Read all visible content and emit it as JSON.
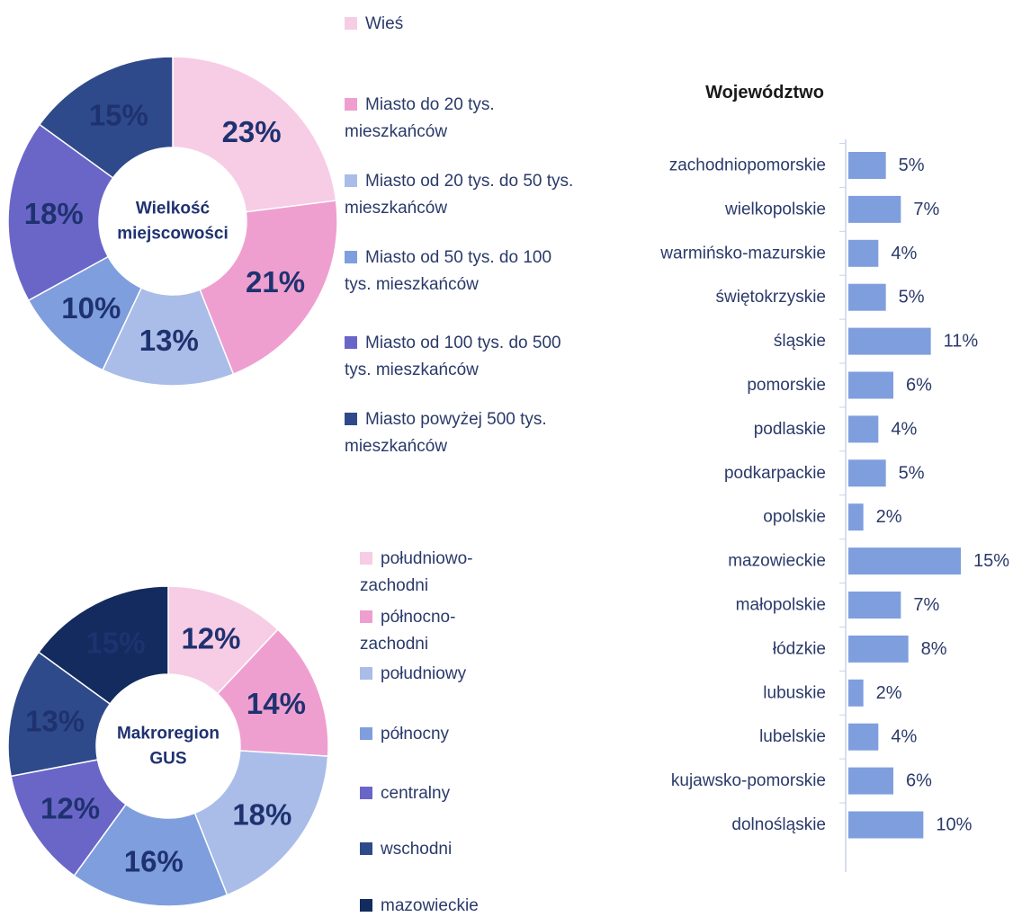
{
  "chart_data": [
    {
      "type": "donut",
      "center_label": [
        "Wielkość",
        "miejscowości"
      ],
      "categories": [
        "Wieś",
        "Miasto do 20 tys. mieszkańców",
        "Miasto od 20 tys. do 50 tys. mieszkańców",
        "Miasto od 50 tys. do 100 tys. mieszkańców",
        "Miasto od 100 tys. do 500 tys. mieszkańców",
        "Miasto powyżej 500 tys. mieszkańców"
      ],
      "values": [
        23,
        21,
        13,
        10,
        18,
        15
      ],
      "value_labels": [
        "23%",
        "21%",
        "13%",
        "10%",
        "18%",
        "15%"
      ],
      "colors": [
        "#f7cce5",
        "#ee9fcf",
        "#a9bde8",
        "#7f9edd",
        "#6a66c8",
        "#2f4a8a"
      ]
    },
    {
      "type": "donut",
      "center_label": [
        "Makroregion",
        "GUS"
      ],
      "categories": [
        "południowo-zachodni",
        "północno-zachodni",
        "południowy",
        "północny",
        "centralny",
        "wschodni",
        "mazowieckie"
      ],
      "values": [
        12,
        14,
        18,
        16,
        12,
        13,
        15
      ],
      "value_labels": [
        "12%",
        "14%",
        "18%",
        "16%",
        "12%",
        "13%",
        "15%"
      ],
      "colors": [
        "#f7cce5",
        "#ee9fcf",
        "#a9bde8",
        "#7f9edd",
        "#6a66c8",
        "#2f4a8a",
        "#132b5e"
      ]
    },
    {
      "type": "bar",
      "orientation": "horizontal",
      "title": "Województwo",
      "categories": [
        "zachodniopomorskie",
        "wielkopolskie",
        "warmińsko-mazurskie",
        "świętokrzyskie",
        "śląskie",
        "pomorskie",
        "podlaskie",
        "podkarpackie",
        "opolskie",
        "mazowieckie",
        "małopolskie",
        "łódzkie",
        "lubuskie",
        "lubelskie",
        "kujawsko-pomorskie",
        "dolnośląskie"
      ],
      "values": [
        5,
        7,
        4,
        5,
        11,
        6,
        4,
        5,
        2,
        15,
        7,
        8,
        2,
        4,
        6,
        10
      ],
      "value_labels": [
        "5%",
        "7%",
        "4%",
        "5%",
        "11%",
        "6%",
        "4%",
        "5%",
        "2%",
        "15%",
        "7%",
        "8%",
        "2%",
        "4%",
        "6%",
        "10%"
      ],
      "color": "#7f9edd",
      "xlim": [
        0,
        15
      ]
    }
  ]
}
